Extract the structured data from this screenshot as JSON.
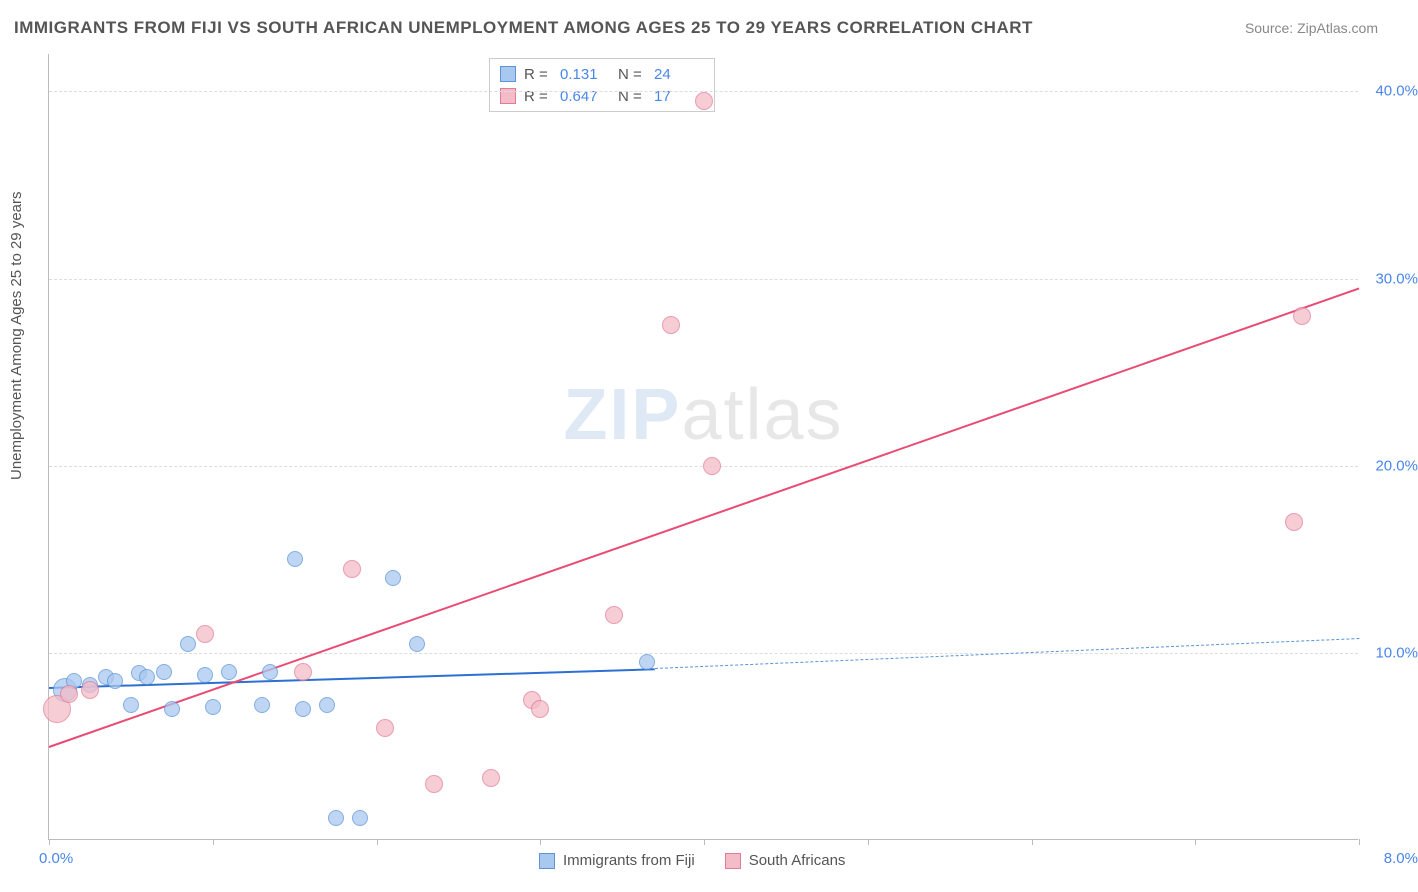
{
  "title": "IMMIGRANTS FROM FIJI VS SOUTH AFRICAN UNEMPLOYMENT AMONG AGES 25 TO 29 YEARS CORRELATION CHART",
  "source_label": "Source:",
  "source_value": "ZipAtlas.com",
  "ylabel": "Unemployment Among Ages 25 to 29 years",
  "watermark_zip": "ZIP",
  "watermark_atlas": "atlas",
  "chart": {
    "type": "scatter",
    "background_color": "#ffffff",
    "grid_color": "#dddddd",
    "axis_color": "#bbbbbb",
    "tick_label_color": "#4a86e8",
    "xlim": [
      0,
      8
    ],
    "ylim": [
      0,
      42
    ],
    "xtick_positions": [
      0,
      1,
      2,
      3,
      4,
      5,
      6,
      7,
      8
    ],
    "xtick_labels": {
      "left": "0.0%",
      "right": "8.0%"
    },
    "ytick_positions": [
      10,
      20,
      30,
      40
    ],
    "ytick_labels": [
      "10.0%",
      "20.0%",
      "30.0%",
      "40.0%"
    ],
    "series": [
      {
        "name": "Immigrants from Fiji",
        "color_fill": "#a9c8ef",
        "color_stroke": "#5a94d6",
        "marker_radius": 8,
        "R": "0.131",
        "N": "24",
        "trend": {
          "x1": 0.0,
          "y1": 8.2,
          "x2": 3.7,
          "y2": 9.2,
          "color": "#2d6fd2",
          "width": 2,
          "dash": false
        },
        "trend_ext": {
          "x1": 3.7,
          "y1": 9.2,
          "x2": 8.0,
          "y2": 10.8,
          "color": "#5a94d6",
          "width": 1,
          "dash": true
        },
        "points": [
          {
            "x": 0.1,
            "y": 8.0,
            "r": 12
          },
          {
            "x": 0.15,
            "y": 8.5,
            "r": 8
          },
          {
            "x": 0.25,
            "y": 8.3,
            "r": 8
          },
          {
            "x": 0.35,
            "y": 8.7,
            "r": 8
          },
          {
            "x": 0.4,
            "y": 8.5,
            "r": 8
          },
          {
            "x": 0.5,
            "y": 7.2,
            "r": 8
          },
          {
            "x": 0.55,
            "y": 8.9,
            "r": 8
          },
          {
            "x": 0.6,
            "y": 8.7,
            "r": 8
          },
          {
            "x": 0.7,
            "y": 9.0,
            "r": 8
          },
          {
            "x": 0.75,
            "y": 7.0,
            "r": 8
          },
          {
            "x": 0.85,
            "y": 10.5,
            "r": 8
          },
          {
            "x": 0.95,
            "y": 8.8,
            "r": 8
          },
          {
            "x": 1.0,
            "y": 7.1,
            "r": 8
          },
          {
            "x": 1.1,
            "y": 9.0,
            "r": 8
          },
          {
            "x": 1.3,
            "y": 7.2,
            "r": 8
          },
          {
            "x": 1.35,
            "y": 9.0,
            "r": 8
          },
          {
            "x": 1.5,
            "y": 15.0,
            "r": 8
          },
          {
            "x": 1.55,
            "y": 7.0,
            "r": 8
          },
          {
            "x": 1.7,
            "y": 7.2,
            "r": 8
          },
          {
            "x": 1.75,
            "y": 1.2,
            "r": 8
          },
          {
            "x": 1.9,
            "y": 1.2,
            "r": 8
          },
          {
            "x": 2.1,
            "y": 14.0,
            "r": 8
          },
          {
            "x": 2.25,
            "y": 10.5,
            "r": 8
          },
          {
            "x": 3.65,
            "y": 9.5,
            "r": 8
          }
        ]
      },
      {
        "name": "South Africans",
        "color_fill": "#f4bcc8",
        "color_stroke": "#e37b96",
        "marker_radius": 9,
        "R": "0.647",
        "N": "17",
        "trend": {
          "x1": 0.0,
          "y1": 5.0,
          "x2": 8.0,
          "y2": 29.5,
          "color": "#e94b73",
          "width": 2,
          "dash": false
        },
        "points": [
          {
            "x": 0.05,
            "y": 7.0,
            "r": 14
          },
          {
            "x": 0.12,
            "y": 7.8,
            "r": 9
          },
          {
            "x": 0.25,
            "y": 8.0,
            "r": 9
          },
          {
            "x": 0.95,
            "y": 11.0,
            "r": 9
          },
          {
            "x": 1.55,
            "y": 9.0,
            "r": 9
          },
          {
            "x": 1.85,
            "y": 14.5,
            "r": 9
          },
          {
            "x": 2.05,
            "y": 6.0,
            "r": 9
          },
          {
            "x": 2.35,
            "y": 3.0,
            "r": 9
          },
          {
            "x": 2.7,
            "y": 3.3,
            "r": 9
          },
          {
            "x": 2.95,
            "y": 7.5,
            "r": 9
          },
          {
            "x": 3.0,
            "y": 7.0,
            "r": 9
          },
          {
            "x": 3.45,
            "y": 12.0,
            "r": 9
          },
          {
            "x": 3.8,
            "y": 27.5,
            "r": 9
          },
          {
            "x": 4.0,
            "y": 39.5,
            "r": 9
          },
          {
            "x": 4.05,
            "y": 20.0,
            "r": 9
          },
          {
            "x": 7.6,
            "y": 17.0,
            "r": 9
          },
          {
            "x": 7.65,
            "y": 28.0,
            "r": 9
          }
        ]
      }
    ],
    "legend_bottom": [
      {
        "label": "Immigrants from Fiji",
        "fill": "#a9c8ef",
        "stroke": "#5a94d6"
      },
      {
        "label": "South Africans",
        "fill": "#f4bcc8",
        "stroke": "#e37b96"
      }
    ]
  }
}
